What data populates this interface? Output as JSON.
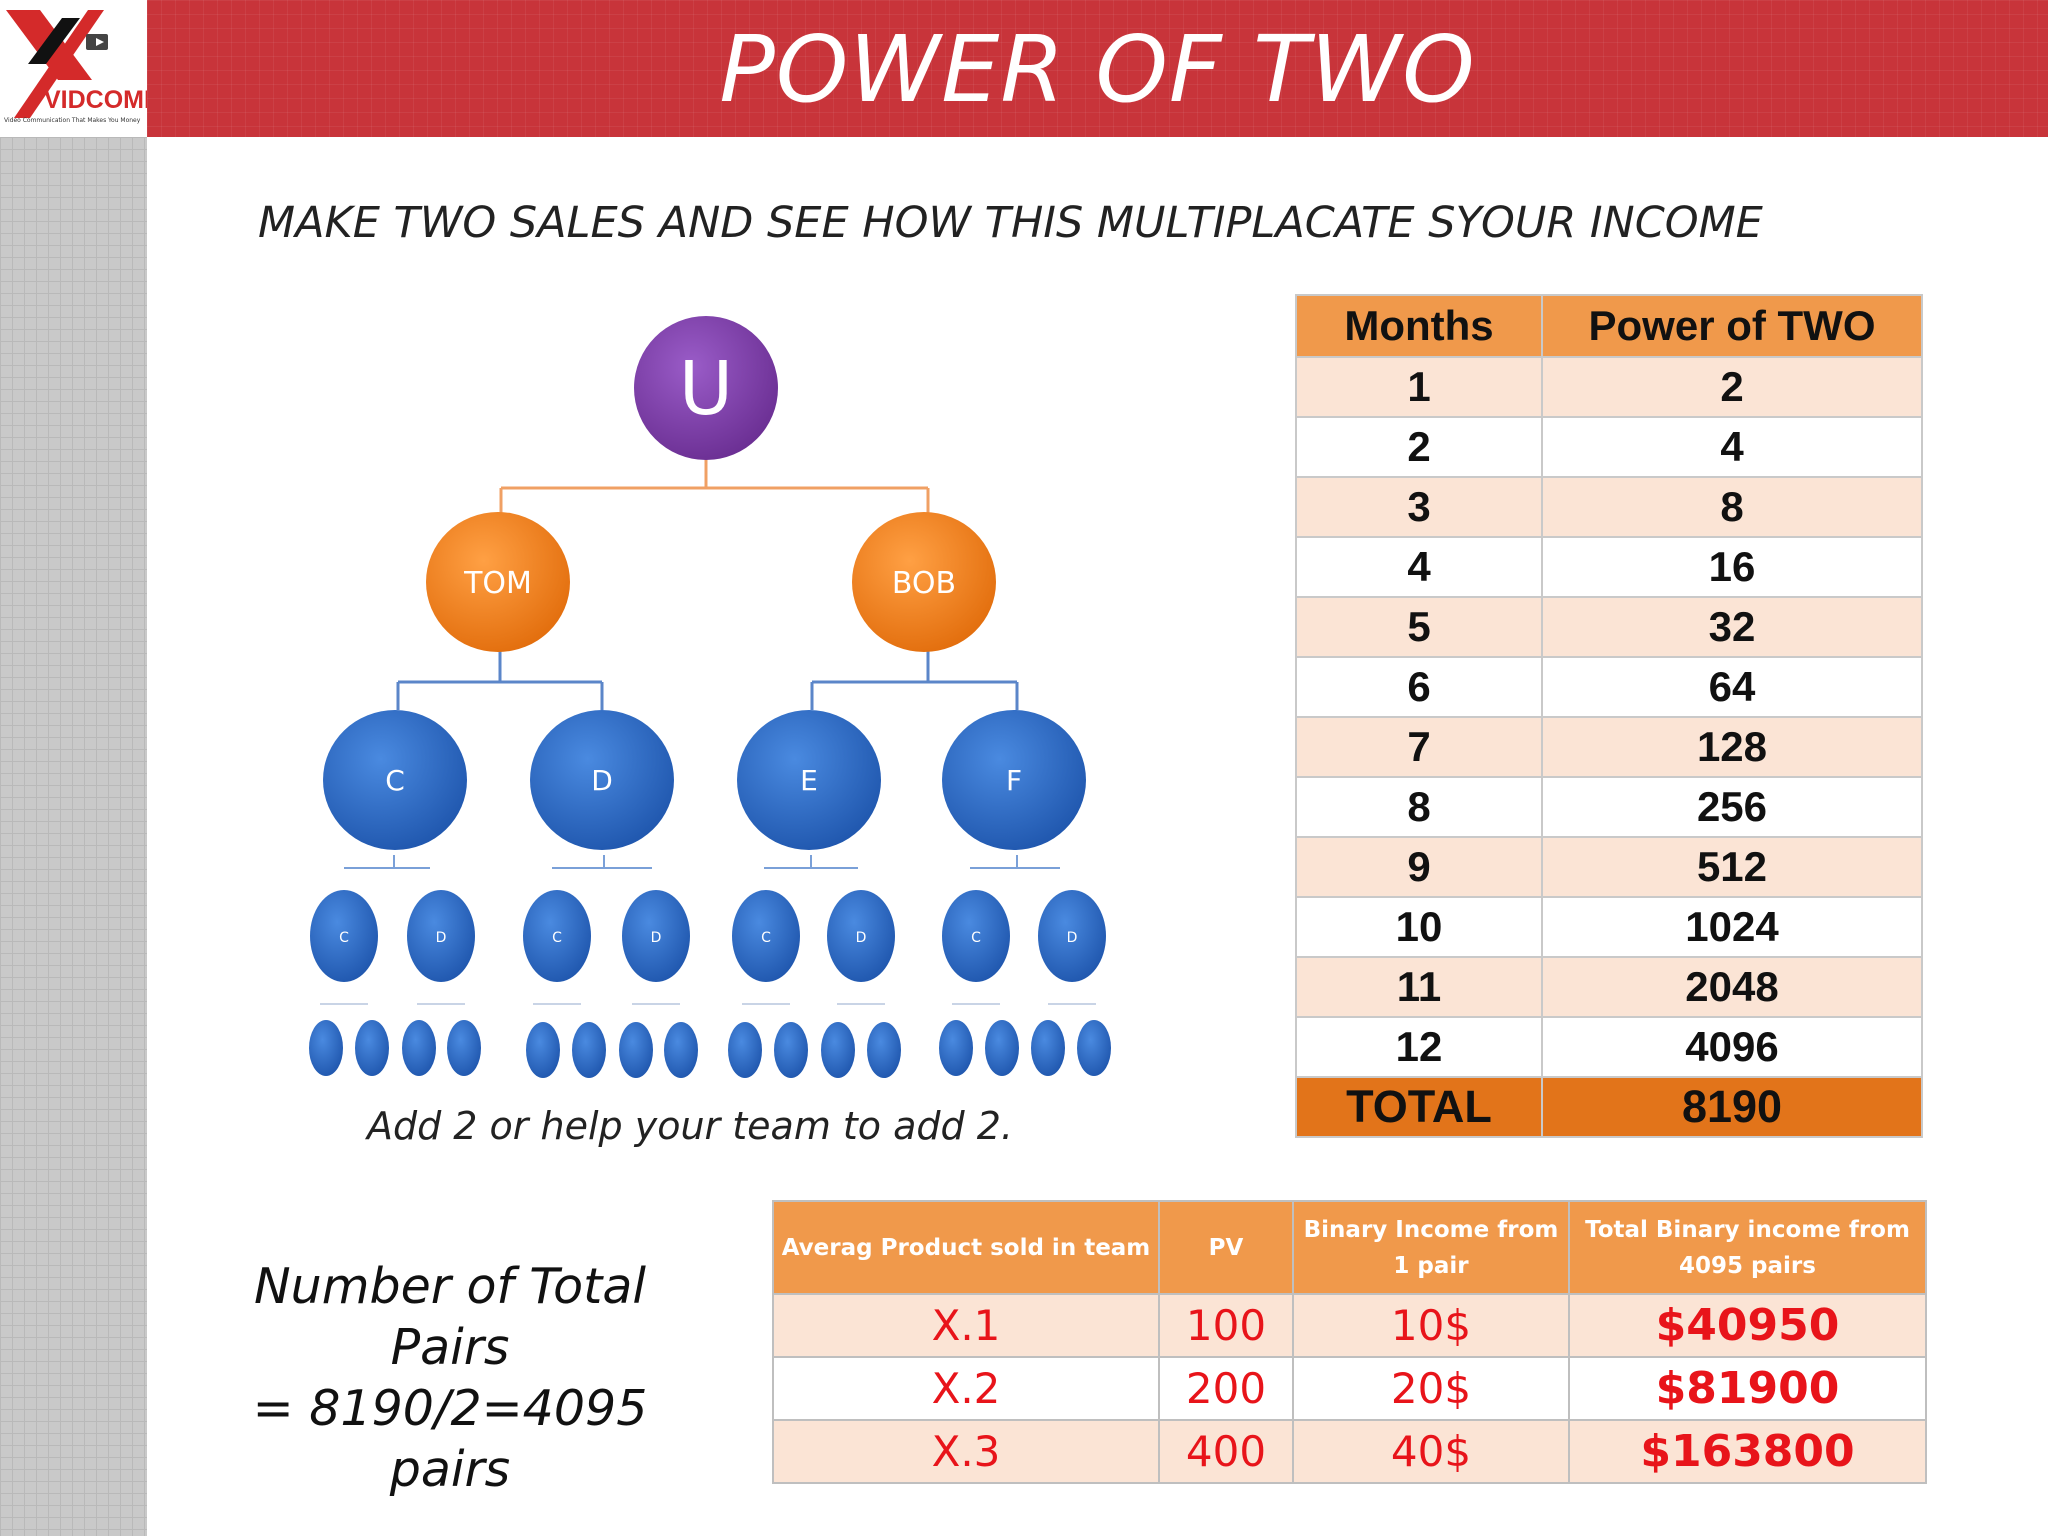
{
  "header": {
    "title": "POWER OF TWO",
    "logo_brand": "VIDCOMM",
    "logo_tagline": "Video Communication That Makes You Money"
  },
  "subtitle": "MAKE TWO SALES AND SEE HOW THIS MULTIPLACATE SYOUR INCOME",
  "tree": {
    "root": "U",
    "level1": [
      "TOM",
      "BOB"
    ],
    "level2": [
      "C",
      "D",
      "E",
      "F"
    ],
    "level3": [
      "C",
      "D",
      "C",
      "D",
      "C",
      "D",
      "C",
      "D"
    ]
  },
  "caption": "Add 2 or help your team to add 2.",
  "pairs_note": {
    "line1": "Number of Total",
    "line2": "Pairs",
    "line3": "= 8190/2=4095 pairs"
  },
  "power_table": {
    "headers": [
      "Months",
      "Power of TWO"
    ],
    "rows": [
      [
        "1",
        "2"
      ],
      [
        "2",
        "4"
      ],
      [
        "3",
        "8"
      ],
      [
        "4",
        "16"
      ],
      [
        "5",
        "32"
      ],
      [
        "6",
        "64"
      ],
      [
        "7",
        "128"
      ],
      [
        "8",
        "256"
      ],
      [
        "9",
        "512"
      ],
      [
        "10",
        "1024"
      ],
      [
        "11",
        "2048"
      ],
      [
        "12",
        "4096"
      ]
    ],
    "total": [
      "TOTAL",
      "8190"
    ]
  },
  "income_table": {
    "headers": [
      "Averag Product sold in team",
      "PV",
      "Binary Income  from 1 pair",
      "Total Binary income from 4095 pairs"
    ],
    "rows": [
      [
        "X.1",
        "100",
        "10$",
        "$40950"
      ],
      [
        "X.2",
        "200",
        "20$",
        "$81900"
      ],
      [
        "X.3",
        "400",
        "40$",
        "$163800"
      ]
    ]
  },
  "colors": {
    "header_red": "#c8343a",
    "root_purple": "#7a3aa3",
    "level1_orange": "#f07f1b",
    "level2_blue": "#2e6dc4",
    "table_header_orange": "#f0994b",
    "table_total_orange": "#e2741a",
    "income_red": "#e8141a"
  }
}
